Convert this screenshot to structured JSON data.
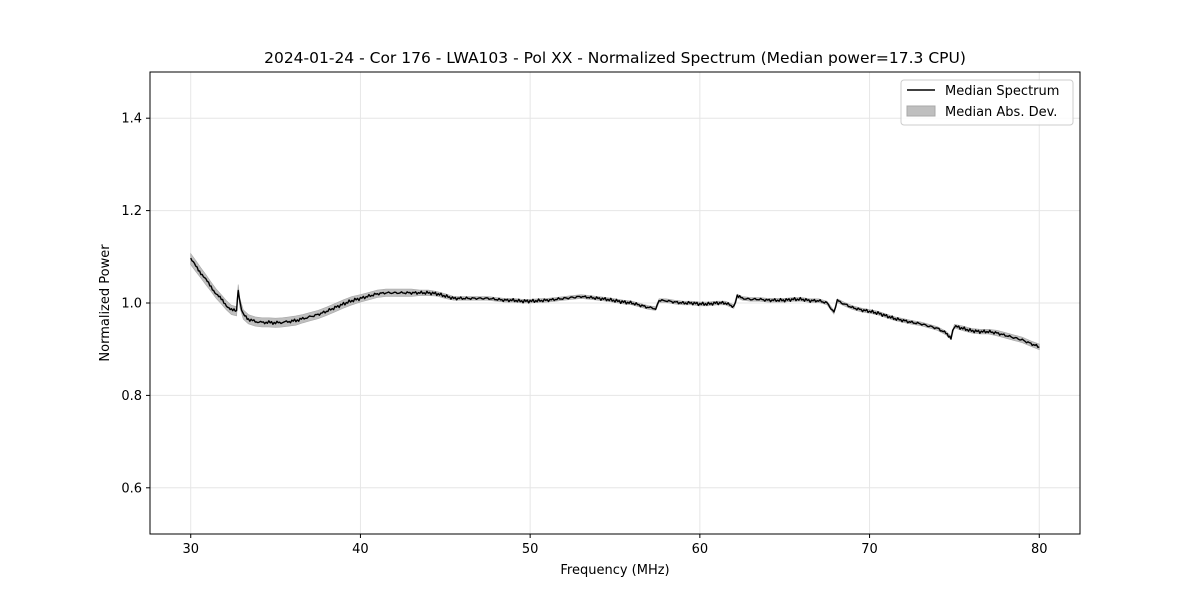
{
  "chart_data": {
    "type": "line",
    "title": "2024-01-24 - Cor 176 - LWA103 - Pol XX - Normalized Spectrum (Median power=17.3 CPU)",
    "xlabel": "Frequency (MHz)",
    "ylabel": "Normalized Power",
    "xlim": [
      27.6,
      82.4
    ],
    "ylim": [
      0.5,
      1.5
    ],
    "xticks": [
      30,
      40,
      50,
      60,
      70,
      80
    ],
    "yticks": [
      0.6,
      0.8,
      1.0,
      1.2,
      1.4
    ],
    "xtick_labels": [
      "30",
      "40",
      "50",
      "60",
      "70",
      "80"
    ],
    "ytick_labels": [
      "0.6",
      "0.8",
      "1.0",
      "1.2",
      "1.4"
    ],
    "grid": true,
    "legend_position": "top-right",
    "series": [
      {
        "name": "Median Spectrum",
        "kind": "line",
        "color": "#000000",
        "x": [
          30.0,
          30.3,
          30.6,
          30.9,
          31.2,
          31.5,
          31.8,
          32.1,
          32.4,
          32.7,
          32.8,
          32.9,
          33.1,
          33.4,
          33.8,
          34.2,
          34.6,
          35.0,
          35.4,
          35.8,
          36.2,
          36.6,
          37.0,
          37.5,
          38.0,
          38.5,
          39.0,
          39.5,
          40.0,
          40.5,
          41.0,
          41.5,
          42.0,
          42.5,
          43.0,
          43.5,
          44.0,
          44.5,
          45.0,
          45.5,
          46.0,
          46.5,
          47.0,
          47.5,
          48.0,
          48.5,
          49.0,
          49.5,
          50.0,
          50.5,
          51.0,
          51.5,
          52.0,
          52.5,
          53.0,
          53.5,
          54.0,
          54.5,
          55.0,
          55.5,
          56.0,
          56.5,
          57.0,
          57.4,
          57.6,
          58.0,
          58.5,
          59.0,
          59.5,
          60.0,
          60.5,
          61.0,
          61.5,
          62.0,
          62.2,
          62.5,
          63.0,
          63.5,
          64.0,
          64.5,
          65.0,
          65.5,
          66.0,
          66.5,
          67.0,
          67.5,
          67.9,
          68.1,
          68.5,
          69.0,
          69.5,
          70.0,
          70.5,
          71.0,
          71.5,
          72.0,
          72.5,
          73.0,
          73.5,
          74.0,
          74.5,
          74.8,
          75.0,
          75.5,
          76.0,
          76.5,
          77.0,
          77.5,
          78.0,
          78.5,
          79.0,
          79.5,
          80.0
        ],
        "y": [
          1.095,
          1.08,
          1.065,
          1.05,
          1.035,
          1.02,
          1.008,
          0.995,
          0.985,
          0.982,
          1.03,
          1.0,
          0.975,
          0.965,
          0.96,
          0.958,
          0.958,
          0.957,
          0.958,
          0.96,
          0.962,
          0.966,
          0.97,
          0.975,
          0.982,
          0.99,
          0.998,
          1.005,
          1.01,
          1.015,
          1.02,
          1.022,
          1.022,
          1.022,
          1.022,
          1.022,
          1.022,
          1.02,
          1.015,
          1.01,
          1.01,
          1.01,
          1.01,
          1.01,
          1.008,
          1.006,
          1.006,
          1.004,
          1.004,
          1.005,
          1.006,
          1.008,
          1.01,
          1.012,
          1.014,
          1.012,
          1.01,
          1.008,
          1.005,
          1.002,
          1.0,
          0.995,
          0.99,
          0.988,
          1.005,
          1.005,
          1.002,
          1.0,
          1.0,
          0.998,
          0.998,
          1.0,
          1.0,
          0.992,
          1.015,
          1.01,
          1.008,
          1.008,
          1.006,
          1.006,
          1.006,
          1.008,
          1.008,
          1.005,
          1.005,
          1.0,
          0.98,
          1.005,
          0.998,
          0.99,
          0.985,
          0.982,
          0.978,
          0.972,
          0.966,
          0.962,
          0.958,
          0.955,
          0.95,
          0.945,
          0.935,
          0.925,
          0.95,
          0.945,
          0.94,
          0.938,
          0.938,
          0.935,
          0.93,
          0.925,
          0.92,
          0.912,
          0.905
        ]
      },
      {
        "name": "Median Abs. Dev.",
        "kind": "band",
        "color": "#bfbfbf",
        "halfwidth": [
          0.012,
          0.012,
          0.011,
          0.011,
          0.01,
          0.01,
          0.01,
          0.01,
          0.01,
          0.01,
          0.01,
          0.01,
          0.01,
          0.01,
          0.01,
          0.01,
          0.01,
          0.01,
          0.01,
          0.01,
          0.01,
          0.009,
          0.009,
          0.009,
          0.009,
          0.009,
          0.009,
          0.009,
          0.008,
          0.008,
          0.008,
          0.008,
          0.008,
          0.008,
          0.008,
          0.006,
          0.006,
          0.005,
          0.005,
          0.004,
          0.004,
          0.004,
          0.004,
          0.004,
          0.004,
          0.004,
          0.004,
          0.004,
          0.004,
          0.004,
          0.004,
          0.004,
          0.004,
          0.004,
          0.004,
          0.004,
          0.004,
          0.004,
          0.004,
          0.004,
          0.004,
          0.004,
          0.004,
          0.004,
          0.004,
          0.004,
          0.004,
          0.004,
          0.004,
          0.004,
          0.004,
          0.004,
          0.004,
          0.004,
          0.004,
          0.004,
          0.004,
          0.004,
          0.004,
          0.004,
          0.004,
          0.004,
          0.004,
          0.004,
          0.004,
          0.004,
          0.004,
          0.004,
          0.004,
          0.004,
          0.004,
          0.004,
          0.004,
          0.004,
          0.004,
          0.004,
          0.004,
          0.004,
          0.004,
          0.004,
          0.004,
          0.004,
          0.004,
          0.005,
          0.005,
          0.005,
          0.005,
          0.006,
          0.006,
          0.006,
          0.006,
          0.006,
          0.006
        ]
      }
    ]
  }
}
